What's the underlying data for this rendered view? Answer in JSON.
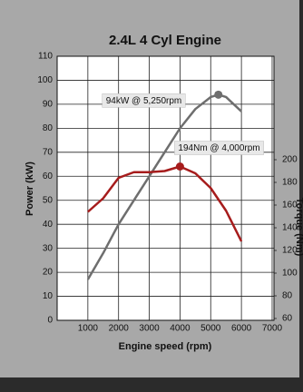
{
  "chart_data": {
    "type": "line",
    "title": "2.4L 4 Cyl Engine",
    "x_label": "Engine speed (rpm)",
    "y_label": "Power (kW)",
    "y2_label": "Torque (Nm)",
    "x": [
      1000,
      1500,
      2000,
      2500,
      3000,
      3500,
      4000,
      4500,
      5000,
      5250,
      5500,
      6000
    ],
    "series": [
      {
        "name": "Power (kW)",
        "color": "#6e6e6e",
        "values": [
          17,
          28,
          40,
          50,
          60,
          70,
          80,
          88,
          93,
          94,
          93,
          87
        ]
      },
      {
        "name": "Torque (Nm)",
        "color": "#a61c1c",
        "axis": "y2",
        "values": [
          154,
          166,
          184,
          189,
          189,
          190,
          194,
          188,
          175,
          165,
          155,
          128
        ]
      }
    ],
    "xlim": [
      0,
      7060
    ],
    "xticks": [
      1000,
      2000,
      3000,
      4000,
      5000,
      6000,
      7000
    ],
    "ylim": [
      0,
      110
    ],
    "yticks": [
      0,
      10,
      20,
      30,
      40,
      50,
      60,
      70,
      80,
      90,
      100,
      110
    ],
    "y2lim": [
      58.4,
      291.2
    ],
    "y2ticks": [
      60,
      80,
      100,
      120,
      140,
      160,
      180,
      200
    ],
    "grid": true,
    "annotations": [
      {
        "text": "94kW @ 5,250rpm",
        "x": 5250,
        "y": 94,
        "series": 0
      },
      {
        "text": "194Nm @ 4,000rpm",
        "x": 4000,
        "y": 194,
        "series": 1
      }
    ]
  }
}
